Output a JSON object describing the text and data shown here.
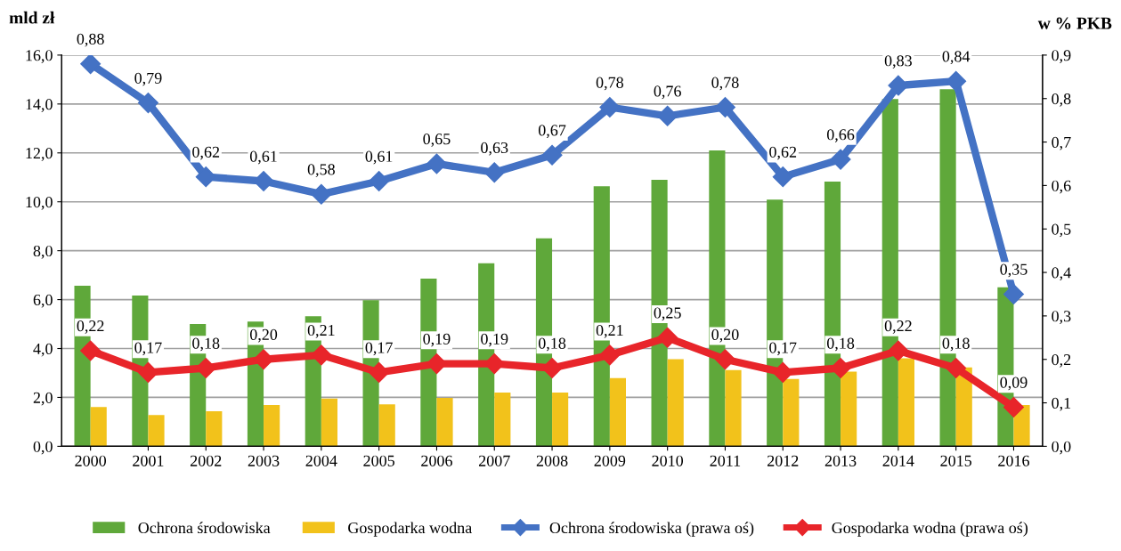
{
  "chart_data": {
    "type": "bar",
    "ylabel": "mld zł",
    "y2label": "w % PKB",
    "categories": [
      "2000",
      "2001",
      "2002",
      "2003",
      "2004",
      "2005",
      "2006",
      "2007",
      "2008",
      "2009",
      "2010",
      "2011",
      "2012",
      "2013",
      "2014",
      "2015",
      "2016"
    ],
    "series": [
      {
        "name": "Ochrona środowiska",
        "color": "#5fa83a",
        "values": [
          6.57,
          6.17,
          5.0,
          5.1,
          5.32,
          5.98,
          6.86,
          7.49,
          8.51,
          10.64,
          10.9,
          12.1,
          10.09,
          10.83,
          14.2,
          14.6,
          6.5
        ]
      },
      {
        "name": "Gospodarka wodna",
        "color": "#f2c21b",
        "values": [
          1.61,
          1.28,
          1.43,
          1.69,
          1.95,
          1.72,
          1.98,
          2.2,
          2.2,
          2.79,
          3.56,
          3.12,
          2.75,
          3.05,
          3.6,
          3.23,
          1.69
        ]
      },
      {
        "name": "Ochrona środowiska (prawa oś)",
        "type": "line",
        "axis": "y2",
        "color": "#4472c4",
        "marker": "diamond",
        "values": [
          0.88,
          0.79,
          0.62,
          0.61,
          0.58,
          0.61,
          0.65,
          0.63,
          0.67,
          0.78,
          0.76,
          0.78,
          0.62,
          0.66,
          0.83,
          0.84,
          0.35
        ],
        "value_labels": [
          "0,88",
          "0,79",
          "0,62",
          "0,61",
          "0,58",
          "0,61",
          "0,65",
          "0,63",
          "0,67",
          "0,78",
          "0,76",
          "0,78",
          "0,62",
          "0,66",
          "0,83",
          "0,84",
          "0,35"
        ]
      },
      {
        "name": "Gospodarka wodna (prawa oś)",
        "type": "line",
        "axis": "y2",
        "color": "#e8252a",
        "marker": "diamond",
        "values": [
          0.22,
          0.17,
          0.18,
          0.2,
          0.21,
          0.17,
          0.19,
          0.19,
          0.18,
          0.21,
          0.25,
          0.2,
          0.17,
          0.18,
          0.22,
          0.18,
          0.09
        ],
        "value_labels": [
          "0,22",
          "0,17",
          "0,18",
          "0,20",
          "0,21",
          "0,17",
          "0,19",
          "0,19",
          "0,18",
          "0,21",
          "0,25",
          "0,20",
          "0,17",
          "0,18",
          "0,22",
          "0,18",
          "0,09"
        ]
      }
    ],
    "ylim": [
      0,
      16
    ],
    "yticks": [
      {
        "value": 0,
        "label": "0,0"
      },
      {
        "value": 2,
        "label": "2,0"
      },
      {
        "value": 4,
        "label": "4,0"
      },
      {
        "value": 6,
        "label": "6,0"
      },
      {
        "value": 8,
        "label": "8,0"
      },
      {
        "value": 10,
        "label": "10,0"
      },
      {
        "value": 12,
        "label": "12,0"
      },
      {
        "value": 14,
        "label": "14,0"
      },
      {
        "value": 16,
        "label": "16,0"
      }
    ],
    "y2lim": [
      0,
      0.9
    ],
    "y2ticks": [
      {
        "value": 0,
        "label": "0,0"
      },
      {
        "value": 0.1,
        "label": "0,1"
      },
      {
        "value": 0.2,
        "label": "0,2"
      },
      {
        "value": 0.3,
        "label": "0,3"
      },
      {
        "value": 0.4,
        "label": "0,4"
      },
      {
        "value": 0.5,
        "label": "0,5"
      },
      {
        "value": 0.6,
        "label": "0,6"
      },
      {
        "value": 0.7,
        "label": "0,7"
      },
      {
        "value": 0.8,
        "label": "0,8"
      },
      {
        "value": 0.9,
        "label": "0,9"
      }
    ],
    "grid": "y",
    "legend": "bottom"
  }
}
